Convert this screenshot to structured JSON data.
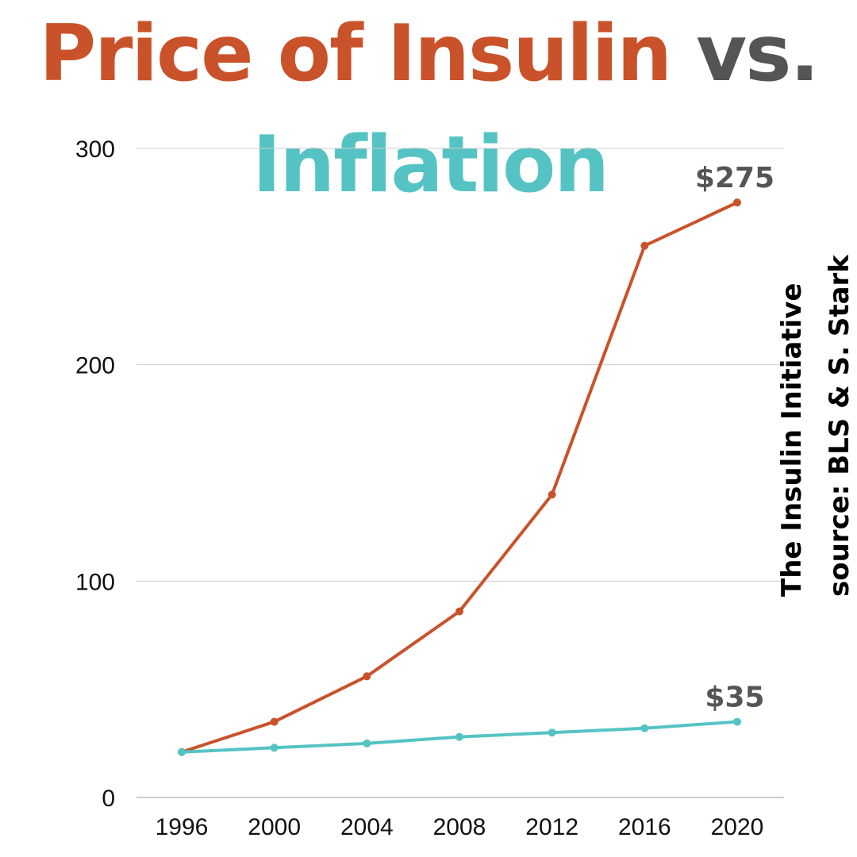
{
  "title": {
    "part1": "Price of Insulin",
    "part2": "vs.",
    "part3": "Inflation"
  },
  "colors": {
    "insulin": "#c9522a",
    "inflation": "#55c3c3",
    "vs": "#555555",
    "grid": "#cccccc"
  },
  "credits": {
    "line1": "The Insulin Initiative",
    "line2": "source: BLS & S. Stark"
  },
  "chart_data": {
    "type": "line",
    "title": "Price of Insulin vs. Inflation",
    "xlabel": "",
    "ylabel": "",
    "x": [
      "1996",
      "2000",
      "2004",
      "2008",
      "2012",
      "2016",
      "2020"
    ],
    "ylim": [
      0,
      300
    ],
    "yticks": [
      "0",
      "100",
      "200",
      "300"
    ],
    "grid": true,
    "series": [
      {
        "name": "Price of Insulin",
        "color": "#c9522a",
        "values": [
          21,
          35,
          56,
          86,
          140,
          255,
          275
        ],
        "end_label": "$275"
      },
      {
        "name": "Inflation",
        "color": "#55c3c3",
        "values": [
          21,
          23,
          25,
          28,
          30,
          32,
          35
        ],
        "end_label": "$35"
      }
    ]
  }
}
